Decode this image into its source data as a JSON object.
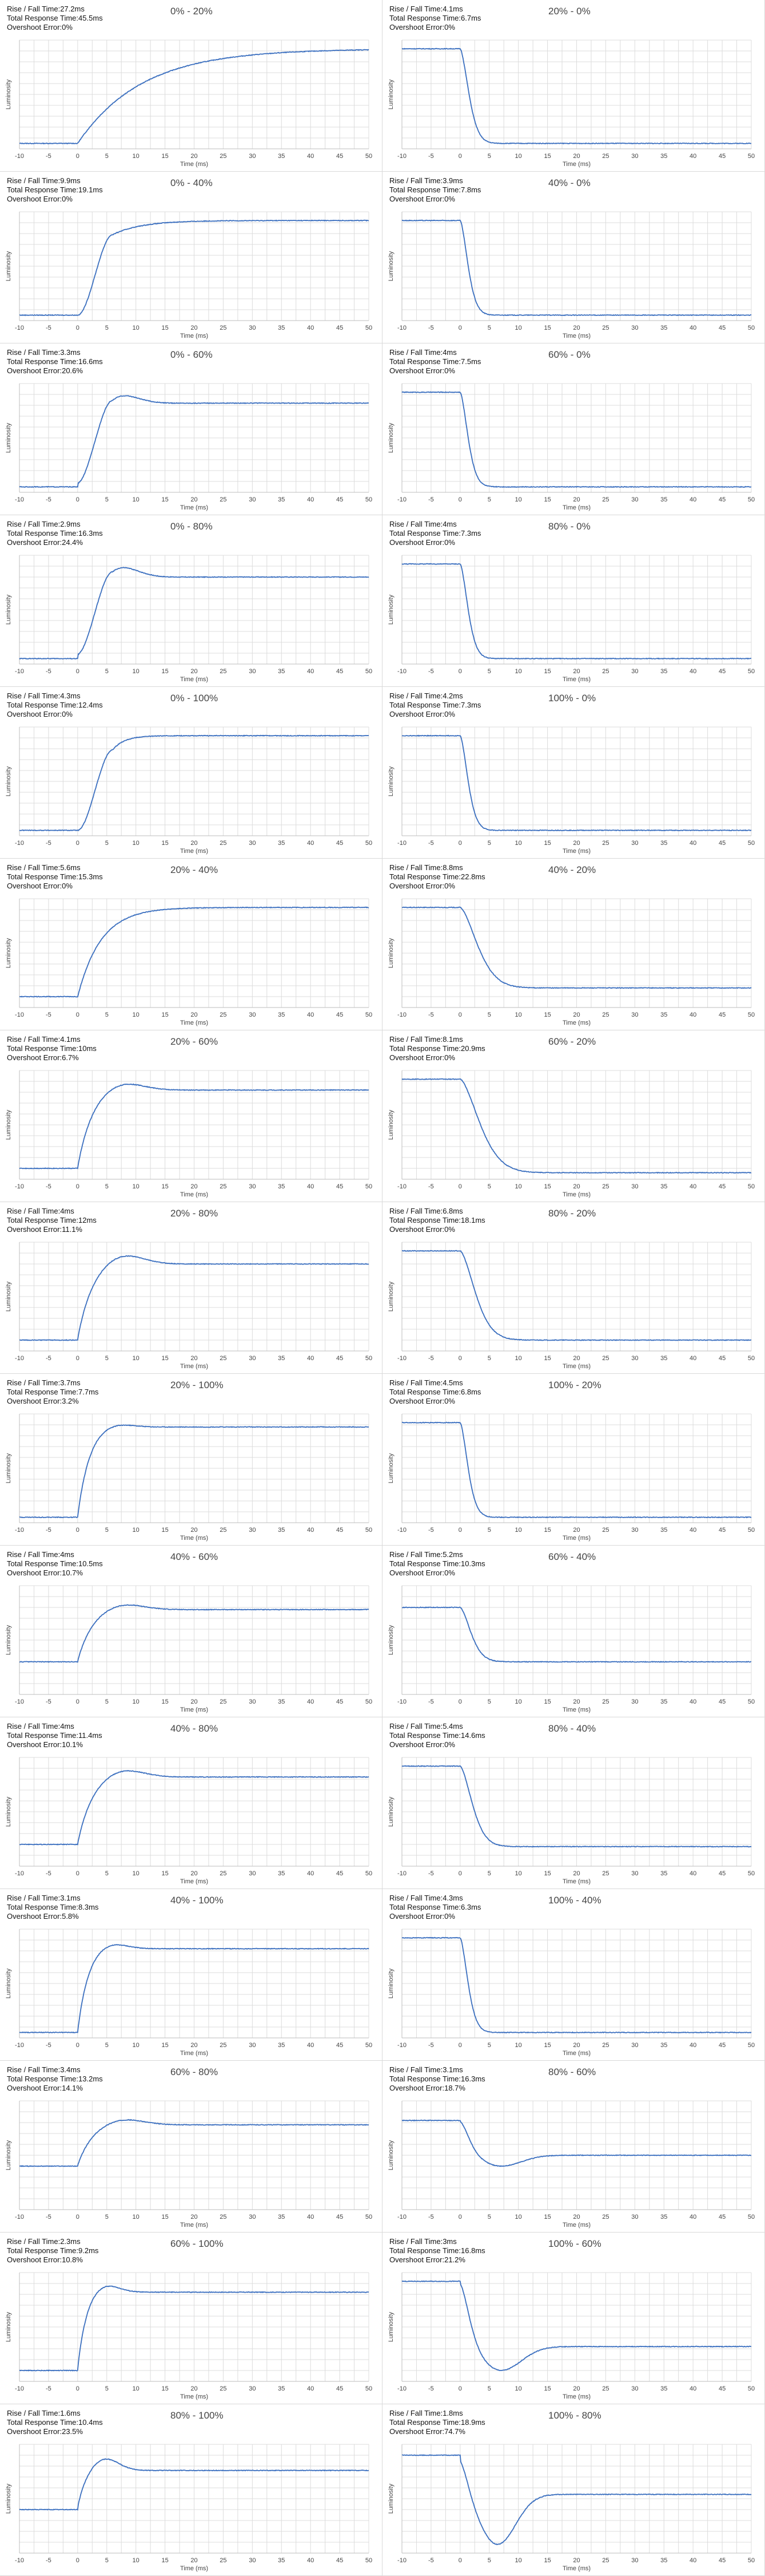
{
  "colors": {
    "line": "#3b6fbf",
    "grid": "#dcdcdc",
    "axis": "#bdbdbd",
    "border": "#d9d9d9"
  },
  "stat_labels": {
    "rise_fall": "Rise / Fall Time:",
    "total": "Total Response Time:",
    "overshoot": "Overshoot Error:"
  },
  "chart_data": [
    {
      "type": "line",
      "title": "0% - 20%",
      "stats": {
        "rise_fall": "27.2ms",
        "total": "45.5ms",
        "overshoot": "0%"
      },
      "xlabel": "Time (ms)",
      "ylabel": "Luminosity",
      "xlim": [
        -10,
        50
      ],
      "ylim": [
        0,
        1
      ],
      "xticks": [
        -10,
        -5,
        0,
        5,
        10,
        15,
        20,
        25,
        30,
        35,
        40,
        45,
        50
      ],
      "direction": "rise",
      "start": 0.05,
      "end": 0.92,
      "tau": 11,
      "overshoot": 0,
      "delay": 0,
      "ramp": 5
    },
    {
      "type": "line",
      "title": "20% - 0%",
      "stats": {
        "rise_fall": "4.1ms",
        "total": "6.7ms",
        "overshoot": "0%"
      },
      "xlabel": "Time (ms)",
      "ylabel": "Luminosity",
      "xlim": [
        -10,
        50
      ],
      "ylim": [
        0,
        1
      ],
      "xticks": [
        -10,
        -5,
        0,
        5,
        10,
        15,
        20,
        25,
        30,
        35,
        40,
        45,
        50
      ],
      "direction": "fall",
      "start": 0.92,
      "end": 0.05,
      "tau": 2.0,
      "overshoot": 0,
      "delay": 0,
      "ramp": 0
    },
    {
      "type": "line",
      "title": "0% - 40%",
      "stats": {
        "rise_fall": "9.9ms",
        "total": "19.1ms",
        "overshoot": "0%"
      },
      "xlabel": "Time (ms)",
      "ylabel": "Luminosity",
      "xlim": [
        -10,
        50
      ],
      "ylim": [
        0,
        1
      ],
      "xticks": [
        -10,
        -5,
        0,
        5,
        10,
        15,
        20,
        25,
        30,
        35,
        40,
        45,
        50
      ],
      "direction": "rise",
      "start": 0.05,
      "end": 0.92,
      "tau": 5,
      "overshoot": 0,
      "delay": 0,
      "ramp": 6
    },
    {
      "type": "line",
      "title": "40% - 0%",
      "stats": {
        "rise_fall": "3.9ms",
        "total": "7.8ms",
        "overshoot": "0%"
      },
      "xlabel": "Time (ms)",
      "ylabel": "Luminosity",
      "xlim": [
        -10,
        50
      ],
      "ylim": [
        0,
        1
      ],
      "xticks": [
        -10,
        -5,
        0,
        5,
        10,
        15,
        20,
        25,
        30,
        35,
        40,
        45,
        50
      ],
      "direction": "fall",
      "start": 0.92,
      "end": 0.05,
      "tau": 1.8,
      "overshoot": 0,
      "delay": 0,
      "ramp": 0
    },
    {
      "type": "line",
      "title": "0% - 60%",
      "stats": {
        "rise_fall": "3.3ms",
        "total": "16.6ms",
        "overshoot": "20.6%"
      },
      "xlabel": "Time (ms)",
      "ylabel": "Luminosity",
      "xlim": [
        -10,
        50
      ],
      "ylim": [
        0,
        1
      ],
      "xticks": [
        -10,
        -5,
        0,
        5,
        10,
        15,
        20,
        25,
        30,
        35,
        40,
        45,
        50
      ],
      "direction": "rise",
      "start": 0.05,
      "end": 0.82,
      "tau": 2.5,
      "overshoot": 0.14,
      "delay": 0,
      "ramp": 6
    },
    {
      "type": "line",
      "title": "60% - 0%",
      "stats": {
        "rise_fall": "4ms",
        "total": "7.5ms",
        "overshoot": "0%"
      },
      "xlabel": "Time (ms)",
      "ylabel": "Luminosity",
      "xlim": [
        -10,
        50
      ],
      "ylim": [
        0,
        1
      ],
      "xticks": [
        -10,
        -5,
        0,
        5,
        10,
        15,
        20,
        25,
        30,
        35,
        40,
        45,
        50
      ],
      "direction": "fall",
      "start": 0.92,
      "end": 0.05,
      "tau": 1.8,
      "overshoot": 0,
      "delay": 0,
      "ramp": 0
    },
    {
      "type": "line",
      "title": "0% - 80%",
      "stats": {
        "rise_fall": "2.9ms",
        "total": "16.3ms",
        "overshoot": "24.4%"
      },
      "xlabel": "Time (ms)",
      "ylabel": "Luminosity",
      "xlim": [
        -10,
        50
      ],
      "ylim": [
        0,
        1
      ],
      "xticks": [
        -10,
        -5,
        0,
        5,
        10,
        15,
        20,
        25,
        30,
        35,
        40,
        45,
        50
      ],
      "direction": "rise",
      "start": 0.05,
      "end": 0.8,
      "tau": 2.5,
      "overshoot": 0.16,
      "delay": 0,
      "ramp": 6
    },
    {
      "type": "line",
      "title": "80% - 0%",
      "stats": {
        "rise_fall": "4ms",
        "total": "7.3ms",
        "overshoot": "0%"
      },
      "xlabel": "Time (ms)",
      "ylabel": "Luminosity",
      "xlim": [
        -10,
        50
      ],
      "ylim": [
        0,
        1
      ],
      "xticks": [
        -10,
        -5,
        0,
        5,
        10,
        15,
        20,
        25,
        30,
        35,
        40,
        45,
        50
      ],
      "direction": "fall",
      "start": 0.92,
      "end": 0.05,
      "tau": 1.8,
      "overshoot": 0,
      "delay": 0,
      "ramp": 0
    },
    {
      "type": "line",
      "title": "0% - 100%",
      "stats": {
        "rise_fall": "4.3ms",
        "total": "12.4ms",
        "overshoot": "0%"
      },
      "xlabel": "Time (ms)",
      "ylabel": "Luminosity",
      "xlim": [
        -10,
        50
      ],
      "ylim": [
        0,
        1
      ],
      "xticks": [
        -10,
        -5,
        0,
        5,
        10,
        15,
        20,
        25,
        30,
        35,
        40,
        45,
        50
      ],
      "direction": "rise",
      "start": 0.05,
      "end": 0.92,
      "tau": 2,
      "overshoot": 0,
      "delay": 0,
      "ramp": 6
    },
    {
      "type": "line",
      "title": "100% - 0%",
      "stats": {
        "rise_fall": "4.2ms",
        "total": "7.3ms",
        "overshoot": "0%"
      },
      "xlabel": "Time (ms)",
      "ylabel": "Luminosity",
      "xlim": [
        -10,
        50
      ],
      "ylim": [
        0,
        1
      ],
      "xticks": [
        -10,
        -5,
        0,
        5,
        10,
        15,
        20,
        25,
        30,
        35,
        40,
        45,
        50
      ],
      "direction": "fall",
      "start": 0.92,
      "end": 0.05,
      "tau": 1.8,
      "overshoot": 0,
      "delay": 0,
      "ramp": 0
    },
    {
      "type": "line",
      "title": "20% - 40%",
      "stats": {
        "rise_fall": "5.6ms",
        "total": "15.3ms",
        "overshoot": "0%"
      },
      "xlabel": "Time (ms)",
      "ylabel": "Luminosity",
      "xlim": [
        -10,
        50
      ],
      "ylim": [
        0,
        1
      ],
      "xticks": [
        -10,
        -5,
        0,
        5,
        10,
        15,
        20,
        25,
        30,
        35,
        40,
        45,
        50
      ],
      "direction": "rise",
      "start": 0.1,
      "end": 0.92,
      "tau": 4,
      "overshoot": 0,
      "delay": 0,
      "ramp": 0
    },
    {
      "type": "line",
      "title": "40% - 20%",
      "stats": {
        "rise_fall": "8.8ms",
        "total": "22.8ms",
        "overshoot": "0%"
      },
      "xlabel": "Time (ms)",
      "ylabel": "Luminosity",
      "xlim": [
        -10,
        50
      ],
      "ylim": [
        0,
        1
      ],
      "xticks": [
        -10,
        -5,
        0,
        5,
        10,
        15,
        20,
        25,
        30,
        35,
        40,
        45,
        50
      ],
      "direction": "fall",
      "start": 0.92,
      "end": 0.18,
      "tau": 4,
      "overshoot": 0,
      "delay": 0,
      "ramp": 0
    },
    {
      "type": "line",
      "title": "20% - 60%",
      "stats": {
        "rise_fall": "4.1ms",
        "total": "10ms",
        "overshoot": "6.7%"
      },
      "xlabel": "Time (ms)",
      "ylabel": "Luminosity",
      "xlim": [
        -10,
        50
      ],
      "ylim": [
        0,
        1
      ],
      "xticks": [
        -10,
        -5,
        0,
        5,
        10,
        15,
        20,
        25,
        30,
        35,
        40,
        45,
        50
      ],
      "direction": "rise",
      "start": 0.1,
      "end": 0.82,
      "tau": 2.5,
      "overshoot": 0.08,
      "delay": 0,
      "ramp": 0
    },
    {
      "type": "line",
      "title": "60% - 20%",
      "stats": {
        "rise_fall": "8.1ms",
        "total": "20.9ms",
        "overshoot": "0%"
      },
      "xlabel": "Time (ms)",
      "ylabel": "Luminosity",
      "xlim": [
        -10,
        50
      ],
      "ylim": [
        0,
        1
      ],
      "xticks": [
        -10,
        -5,
        0,
        5,
        10,
        15,
        20,
        25,
        30,
        35,
        40,
        45,
        50
      ],
      "direction": "fall",
      "start": 0.92,
      "end": 0.06,
      "tau": 4.5,
      "overshoot": 0,
      "delay": 0,
      "ramp": 0
    },
    {
      "type": "line",
      "title": "20% - 80%",
      "stats": {
        "rise_fall": "4ms",
        "total": "12ms",
        "overshoot": "11.1%"
      },
      "xlabel": "Time (ms)",
      "ylabel": "Luminosity",
      "xlim": [
        -10,
        50
      ],
      "ylim": [
        0,
        1
      ],
      "xticks": [
        -10,
        -5,
        0,
        5,
        10,
        15,
        20,
        25,
        30,
        35,
        40,
        45,
        50
      ],
      "direction": "rise",
      "start": 0.1,
      "end": 0.8,
      "tau": 2.5,
      "overshoot": 0.1,
      "delay": 0,
      "ramp": 0
    },
    {
      "type": "line",
      "title": "80% - 20%",
      "stats": {
        "rise_fall": "6.8ms",
        "total": "18.1ms",
        "overshoot": "0%"
      },
      "xlabel": "Time (ms)",
      "ylabel": "Luminosity",
      "xlim": [
        -10,
        50
      ],
      "ylim": [
        0,
        1
      ],
      "xticks": [
        -10,
        -5,
        0,
        5,
        10,
        15,
        20,
        25,
        30,
        35,
        40,
        45,
        50
      ],
      "direction": "fall",
      "start": 0.92,
      "end": 0.1,
      "tau": 3.5,
      "overshoot": 0,
      "delay": 0,
      "ramp": 0
    },
    {
      "type": "line",
      "title": "20% - 100%",
      "stats": {
        "rise_fall": "3.7ms",
        "total": "7.7ms",
        "overshoot": "3.2%"
      },
      "xlabel": "Time (ms)",
      "ylabel": "Luminosity",
      "xlim": [
        -10,
        50
      ],
      "ylim": [
        0,
        1
      ],
      "xticks": [
        -10,
        -5,
        0,
        5,
        10,
        15,
        20,
        25,
        30,
        35,
        40,
        45,
        50
      ],
      "direction": "rise",
      "start": 0.05,
      "end": 0.88,
      "tau": 2,
      "overshoot": 0.04,
      "delay": 0,
      "ramp": 0
    },
    {
      "type": "line",
      "title": "100% - 20%",
      "stats": {
        "rise_fall": "4.5ms",
        "total": "6.8ms",
        "overshoot": "0%"
      },
      "xlabel": "Time (ms)",
      "ylabel": "Luminosity",
      "xlim": [
        -10,
        50
      ],
      "ylim": [
        0,
        1
      ],
      "xticks": [
        -10,
        -5,
        0,
        5,
        10,
        15,
        20,
        25,
        30,
        35,
        40,
        45,
        50
      ],
      "direction": "fall",
      "start": 0.92,
      "end": 0.05,
      "tau": 1.8,
      "overshoot": 0,
      "delay": 0,
      "ramp": 0
    },
    {
      "type": "line",
      "title": "40% - 60%",
      "stats": {
        "rise_fall": "4ms",
        "total": "10.5ms",
        "overshoot": "10.7%"
      },
      "xlabel": "Time (ms)",
      "ylabel": "Luminosity",
      "xlim": [
        -10,
        50
      ],
      "ylim": [
        0,
        1
      ],
      "xticks": [
        -10,
        -5,
        0,
        5,
        10,
        15,
        20,
        25,
        30,
        35,
        40,
        45,
        50
      ],
      "direction": "rise",
      "start": 0.3,
      "end": 0.78,
      "tau": 2.5,
      "overshoot": 0.06,
      "delay": 0,
      "ramp": 0
    },
    {
      "type": "line",
      "title": "60% - 40%",
      "stats": {
        "rise_fall": "5.2ms",
        "total": "10.3ms",
        "overshoot": "0%"
      },
      "xlabel": "Time (ms)",
      "ylabel": "Luminosity",
      "xlim": [
        -10,
        50
      ],
      "ylim": [
        0,
        1
      ],
      "xticks": [
        -10,
        -5,
        0,
        5,
        10,
        15,
        20,
        25,
        30,
        35,
        40,
        45,
        50
      ],
      "direction": "fall",
      "start": 0.8,
      "end": 0.3,
      "tau": 2.5,
      "overshoot": 0,
      "delay": 0,
      "ramp": 0
    },
    {
      "type": "line",
      "title": "40% - 80%",
      "stats": {
        "rise_fall": "4ms",
        "total": "11.4ms",
        "overshoot": "10.1%"
      },
      "xlabel": "Time (ms)",
      "ylabel": "Luminosity",
      "xlim": [
        -10,
        50
      ],
      "ylim": [
        0,
        1
      ],
      "xticks": [
        -10,
        -5,
        0,
        5,
        10,
        15,
        20,
        25,
        30,
        35,
        40,
        45,
        50
      ],
      "direction": "rise",
      "start": 0.2,
      "end": 0.82,
      "tau": 2.5,
      "overshoot": 0.08,
      "delay": 0,
      "ramp": 0
    },
    {
      "type": "line",
      "title": "80% - 40%",
      "stats": {
        "rise_fall": "5.4ms",
        "total": "14.6ms",
        "overshoot": "0%"
      },
      "xlabel": "Time (ms)",
      "ylabel": "Luminosity",
      "xlim": [
        -10,
        50
      ],
      "ylim": [
        0,
        1
      ],
      "xticks": [
        -10,
        -5,
        0,
        5,
        10,
        15,
        20,
        25,
        30,
        35,
        40,
        45,
        50
      ],
      "direction": "fall",
      "start": 0.92,
      "end": 0.18,
      "tau": 2.8,
      "overshoot": 0,
      "delay": 0,
      "ramp": 0
    },
    {
      "type": "line",
      "title": "40% - 100%",
      "stats": {
        "rise_fall": "3.1ms",
        "total": "8.3ms",
        "overshoot": "5.8%"
      },
      "xlabel": "Time (ms)",
      "ylabel": "Luminosity",
      "xlim": [
        -10,
        50
      ],
      "ylim": [
        0,
        1
      ],
      "xticks": [
        -10,
        -5,
        0,
        5,
        10,
        15,
        20,
        25,
        30,
        35,
        40,
        45,
        50
      ],
      "direction": "rise",
      "start": 0.05,
      "end": 0.82,
      "tau": 1.8,
      "overshoot": 0.06,
      "delay": 0,
      "ramp": 0
    },
    {
      "type": "line",
      "title": "100% - 40%",
      "stats": {
        "rise_fall": "4.3ms",
        "total": "6.3ms",
        "overshoot": "0%"
      },
      "xlabel": "Time (ms)",
      "ylabel": "Luminosity",
      "xlim": [
        -10,
        50
      ],
      "ylim": [
        0,
        1
      ],
      "xticks": [
        -10,
        -5,
        0,
        5,
        10,
        15,
        20,
        25,
        30,
        35,
        40,
        45,
        50
      ],
      "direction": "fall",
      "start": 0.92,
      "end": 0.05,
      "tau": 1.8,
      "overshoot": 0,
      "delay": 0,
      "ramp": 0
    },
    {
      "type": "line",
      "title": "60% - 80%",
      "stats": {
        "rise_fall": "3.4ms",
        "total": "13.2ms",
        "overshoot": "14.1%"
      },
      "xlabel": "Time (ms)",
      "ylabel": "Luminosity",
      "xlim": [
        -10,
        50
      ],
      "ylim": [
        0,
        1
      ],
      "xticks": [
        -10,
        -5,
        0,
        5,
        10,
        15,
        20,
        25,
        30,
        35,
        40,
        45,
        50
      ],
      "direction": "rise",
      "start": 0.4,
      "end": 0.78,
      "tau": 2.5,
      "overshoot": 0.06,
      "delay": 0,
      "ramp": 0
    },
    {
      "type": "line",
      "title": "80% - 60%",
      "stats": {
        "rise_fall": "3.1ms",
        "total": "16.3ms",
        "overshoot": "18.7%"
      },
      "xlabel": "Time (ms)",
      "ylabel": "Luminosity",
      "xlim": [
        -10,
        50
      ],
      "ylim": [
        0,
        1
      ],
      "xticks": [
        -10,
        -5,
        0,
        5,
        10,
        15,
        20,
        25,
        30,
        35,
        40,
        45,
        50
      ],
      "direction": "fall",
      "start": 0.82,
      "end": 0.5,
      "tau": 2.2,
      "overshoot": 0.1,
      "delay": 0,
      "ramp": 0
    },
    {
      "type": "line",
      "title": "60% - 100%",
      "stats": {
        "rise_fall": "2.3ms",
        "total": "9.2ms",
        "overshoot": "10.8%"
      },
      "xlabel": "Time (ms)",
      "ylabel": "Luminosity",
      "xlim": [
        -10,
        50
      ],
      "ylim": [
        0,
        1
      ],
      "xticks": [
        -10,
        -5,
        0,
        5,
        10,
        15,
        20,
        25,
        30,
        35,
        40,
        45,
        50
      ],
      "direction": "rise",
      "start": 0.1,
      "end": 0.82,
      "tau": 1.5,
      "overshoot": 0.08,
      "delay": 0,
      "ramp": 0
    },
    {
      "type": "line",
      "title": "100% - 60%",
      "stats": {
        "rise_fall": "3ms",
        "total": "16.8ms",
        "overshoot": "21.2%"
      },
      "xlabel": "Time (ms)",
      "ylabel": "Luminosity",
      "xlim": [
        -10,
        50
      ],
      "ylim": [
        0,
        1
      ],
      "xticks": [
        -10,
        -5,
        0,
        5,
        10,
        15,
        20,
        25,
        30,
        35,
        40,
        45,
        50
      ],
      "direction": "fall",
      "start": 0.92,
      "end": 0.32,
      "tau": 2.2,
      "overshoot": 0.22,
      "delay": 0,
      "ramp": 0
    },
    {
      "type": "line",
      "title": "80% - 100%",
      "stats": {
        "rise_fall": "1.6ms",
        "total": "10.4ms",
        "overshoot": "23.5%"
      },
      "xlabel": "Time (ms)",
      "ylabel": "Luminosity",
      "xlim": [
        -10,
        50
      ],
      "ylim": [
        0,
        1
      ],
      "xticks": [
        -10,
        -5,
        0,
        5,
        10,
        15,
        20,
        25,
        30,
        35,
        40,
        45,
        50
      ],
      "direction": "rise",
      "start": 0.4,
      "end": 0.76,
      "tau": 1.5,
      "overshoot": 0.12,
      "delay": 0,
      "ramp": 0
    },
    {
      "type": "line",
      "title": "100% - 80%",
      "stats": {
        "rise_fall": "1.8ms",
        "total": "18.9ms",
        "overshoot": "74.7%"
      },
      "xlabel": "Time (ms)",
      "ylabel": "Luminosity",
      "xlim": [
        -10,
        50
      ],
      "ylim": [
        0,
        1
      ],
      "xticks": [
        -10,
        -5,
        0,
        5,
        10,
        15,
        20,
        25,
        30,
        35,
        40,
        45,
        50
      ],
      "direction": "fall",
      "start": 0.9,
      "end": 0.54,
      "tau": 2.0,
      "overshoot": 0.46,
      "delay": 0,
      "ramp": 0
    }
  ]
}
